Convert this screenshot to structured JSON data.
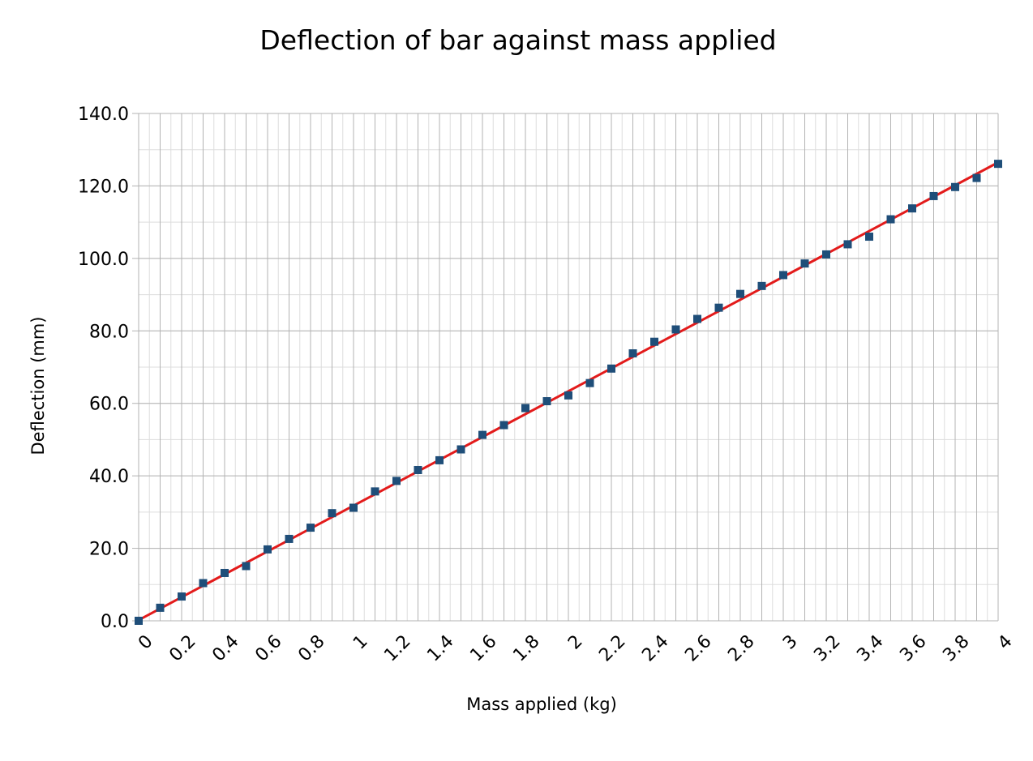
{
  "chart_data": {
    "type": "scatter",
    "title": "Deflection of bar against mass applied",
    "xlabel": "Mass applied (kg)",
    "ylabel": "Deflection (mm)",
    "xlim": [
      0,
      4
    ],
    "ylim": [
      0,
      140
    ],
    "x_ticks": [
      "0",
      "0.2",
      "0.4",
      "0.6",
      "0.8",
      "1",
      "1.2",
      "1.4",
      "1.6",
      "1.8",
      "2",
      "2.2",
      "2.4",
      "2.6",
      "2.8",
      "3",
      "3.2",
      "3.4",
      "3.6",
      "3.8",
      "4"
    ],
    "y_ticks": [
      "0.0",
      "20.0",
      "40.0",
      "60.0",
      "80.0",
      "100.0",
      "120.0",
      "140.0"
    ],
    "grid": true,
    "series": [
      {
        "color": "#1f4e79",
        "marker": "square",
        "x": [
          0,
          0.1,
          0.2,
          0.3,
          0.4,
          0.5,
          0.6,
          0.7,
          0.8,
          0.9,
          1.0,
          1.1,
          1.2,
          1.3,
          1.4,
          1.5,
          1.6,
          1.7,
          1.8,
          1.9,
          2.0,
          2.1,
          2.2,
          2.3,
          2.4,
          2.5,
          2.6,
          2.7,
          2.8,
          2.9,
          3.0,
          3.1,
          3.2,
          3.3,
          3.4,
          3.5,
          3.6,
          3.7,
          3.8,
          3.9,
          4.0
        ],
        "y": [
          0.0,
          3.6,
          6.7,
          10.4,
          13.2,
          15.1,
          19.7,
          22.6,
          25.7,
          29.7,
          31.2,
          35.7,
          38.6,
          41.6,
          44.3,
          47.3,
          51.3,
          54.0,
          58.7,
          60.6,
          62.2,
          65.6,
          69.6,
          73.8,
          77.0,
          80.4,
          83.3,
          86.4,
          90.2,
          92.4,
          95.4,
          98.6,
          101.1,
          103.9,
          106.0,
          110.8,
          113.8,
          117.2,
          119.7,
          122.2,
          126.1
        ]
      }
    ],
    "trendline": {
      "type": "linear",
      "color": "#e31b1b",
      "x": [
        0,
        4
      ],
      "y": [
        0.2,
        126.5
      ]
    }
  }
}
